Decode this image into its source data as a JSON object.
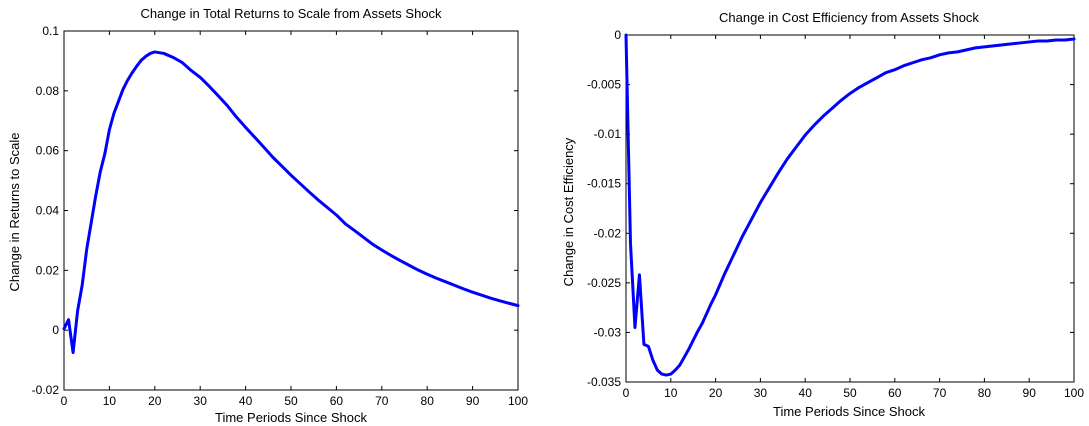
{
  "chart_data": [
    {
      "type": "line",
      "title": "Change in Total Returns to Scale from Assets Shock",
      "xlabel": "Time Periods Since Shock",
      "ylabel": "Change in Returns to Scale",
      "xlim": [
        0,
        100
      ],
      "ylim": [
        -0.02,
        0.1
      ],
      "xticks": [
        0,
        10,
        20,
        30,
        40,
        50,
        60,
        70,
        80,
        90,
        100
      ],
      "xtick_labels": [
        "0",
        "10",
        "20",
        "30",
        "40",
        "50",
        "60",
        "70",
        "80",
        "90",
        "100"
      ],
      "yticks": [
        -0.02,
        0,
        0.02,
        0.04,
        0.06,
        0.08,
        0.1
      ],
      "ytick_labels": [
        "-0.02",
        "0",
        "0.02",
        "0.04",
        "0.06",
        "0.08",
        "0.1"
      ],
      "grid": false,
      "line_color": "#0000ff",
      "series": [
        {
          "x": [
            0,
            1,
            2,
            3,
            4,
            5,
            6,
            7,
            8,
            9,
            10,
            11,
            12,
            13,
            14,
            15,
            16,
            17,
            18,
            19,
            20,
            22,
            24,
            26,
            28,
            30,
            32,
            34,
            36,
            38,
            40,
            42,
            44,
            46,
            48,
            50,
            52,
            54,
            56,
            58,
            60,
            62,
            64,
            66,
            68,
            70,
            72,
            74,
            76,
            78,
            80,
            82,
            84,
            86,
            88,
            90,
            92,
            94,
            96,
            98,
            100
          ],
          "y": [
            0.0005,
            0.0035,
            -0.0075,
            0.0065,
            0.015,
            0.027,
            0.036,
            0.045,
            0.053,
            0.059,
            0.067,
            0.0725,
            0.0765,
            0.0805,
            0.0835,
            0.086,
            0.0882,
            0.0902,
            0.0915,
            0.0925,
            0.093,
            0.0925,
            0.0912,
            0.0895,
            0.0868,
            0.0845,
            0.0815,
            0.0783,
            0.075,
            0.0712,
            0.0678,
            0.0645,
            0.0612,
            0.0578,
            0.0548,
            0.0518,
            0.049,
            0.0462,
            0.0435,
            0.041,
            0.0385,
            0.0355,
            0.0333,
            0.031,
            0.0287,
            0.0268,
            0.025,
            0.0233,
            0.0217,
            0.0201,
            0.0187,
            0.0174,
            0.0162,
            0.015,
            0.0138,
            0.0127,
            0.0117,
            0.0107,
            0.0098,
            0.009,
            0.0082
          ]
        }
      ]
    },
    {
      "type": "line",
      "title": "Change in Cost Efficiency from Assets Shock",
      "xlabel": "Time Periods Since Shock",
      "ylabel": "Change in Cost Efficiency",
      "xlim": [
        0,
        100
      ],
      "ylim": [
        -0.035,
        0
      ],
      "xticks": [
        0,
        10,
        20,
        30,
        40,
        50,
        60,
        70,
        80,
        90,
        100
      ],
      "xtick_labels": [
        "0",
        "10",
        "20",
        "30",
        "40",
        "50",
        "60",
        "70",
        "80",
        "90",
        "100"
      ],
      "yticks": [
        -0.035,
        -0.03,
        -0.025,
        -0.02,
        -0.015,
        -0.01,
        -0.005,
        0
      ],
      "ytick_labels": [
        "-0.035",
        "-0.03",
        "-0.025",
        "-0.02",
        "-0.015",
        "-0.01",
        "-0.005",
        "0"
      ],
      "grid": false,
      "line_color": "#0000ff",
      "series": [
        {
          "x": [
            0,
            1,
            2,
            3,
            4,
            5,
            6,
            7,
            8,
            9,
            10,
            11,
            12,
            13,
            14,
            15,
            16,
            17,
            18,
            19,
            20,
            22,
            24,
            26,
            28,
            30,
            32,
            34,
            36,
            38,
            40,
            42,
            44,
            46,
            48,
            50,
            52,
            54,
            56,
            58,
            60,
            62,
            64,
            66,
            68,
            70,
            72,
            74,
            76,
            78,
            80,
            82,
            84,
            86,
            88,
            90,
            92,
            94,
            96,
            98,
            100
          ],
          "y": [
            0,
            -0.021,
            -0.0295,
            -0.0242,
            -0.0312,
            -0.0314,
            -0.0328,
            -0.0338,
            -0.0342,
            -0.0343,
            -0.0342,
            -0.0338,
            -0.0333,
            -0.0325,
            -0.0317,
            -0.0308,
            -0.0299,
            -0.0291,
            -0.0281,
            -0.0271,
            -0.0262,
            -0.0241,
            -0.0222,
            -0.0203,
            -0.0186,
            -0.0169,
            -0.0154,
            -0.0139,
            -0.0125,
            -0.0113,
            -0.0101,
            -0.0091,
            -0.0082,
            -0.0074,
            -0.0066,
            -0.0059,
            -0.0053,
            -0.0048,
            -0.0043,
            -0.0038,
            -0.0035,
            -0.0031,
            -0.0028,
            -0.0025,
            -0.0023,
            -0.002,
            -0.0018,
            -0.0017,
            -0.0015,
            -0.0013,
            -0.0012,
            -0.0011,
            -0.001,
            -0.0009,
            -0.0008,
            -0.0007,
            -0.0006,
            -0.0006,
            -0.0005,
            -0.0005,
            -0.0004
          ]
        }
      ]
    }
  ]
}
